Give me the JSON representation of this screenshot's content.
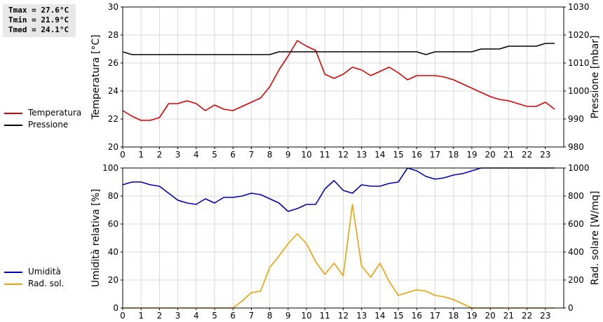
{
  "stats": {
    "tmax": "Tmax = 27.6°C",
    "tmin": "Tmin = 21.9°C",
    "tmed": "Tmed = 24.1°C"
  },
  "colors": {
    "temperature": "#dd0000",
    "pressure": "#000000",
    "humidity": "#0000bb",
    "radiation": "#f0a000"
  },
  "chart_data": [
    {
      "type": "line",
      "ylabel": "Temperatura [°C]",
      "y2label": "Pressione [mbar]",
      "ylim": [
        20,
        30
      ],
      "y2lim": [
        980,
        1030
      ],
      "yticks": [
        20,
        22,
        24,
        26,
        28,
        30
      ],
      "y2ticks": [
        980,
        990,
        1000,
        1010,
        1020,
        1030
      ],
      "xlim": [
        0,
        24
      ],
      "xticks": [
        "0",
        "1",
        "2",
        "3",
        "4",
        "5",
        "6",
        "7",
        "8",
        "9",
        "10",
        "11",
        "12",
        "13",
        "14",
        "15",
        "16",
        "17",
        "18",
        "19",
        "20",
        "21",
        "22",
        "23"
      ],
      "grid": true,
      "legend": [
        "Temperatura",
        "Pressione"
      ],
      "series": [
        {
          "name": "Temperatura",
          "axis": "left",
          "x": [
            0,
            0.5,
            1,
            1.5,
            2,
            2.5,
            3,
            3.5,
            4,
            4.5,
            5,
            5.5,
            6,
            6.5,
            7,
            7.5,
            8,
            8.5,
            9,
            9.5,
            10,
            10.5,
            11,
            11.5,
            12,
            12.5,
            13,
            13.5,
            14,
            14.5,
            15,
            15.5,
            16,
            16.5,
            17,
            17.5,
            18,
            18.5,
            19,
            19.5,
            20,
            20.5,
            21,
            21.5,
            22,
            22.5,
            23,
            23.5
          ],
          "values": [
            22.6,
            22.2,
            21.9,
            21.9,
            22.1,
            23.1,
            23.1,
            23.3,
            23.1,
            22.6,
            23.0,
            22.7,
            22.6,
            22.9,
            23.2,
            23.5,
            24.3,
            25.5,
            26.5,
            27.6,
            27.2,
            26.9,
            25.2,
            24.9,
            25.2,
            25.7,
            25.5,
            25.1,
            25.4,
            25.7,
            25.3,
            24.8,
            25.1,
            25.1,
            25.1,
            25.0,
            24.8,
            24.5,
            24.2,
            23.9,
            23.6,
            23.4,
            23.3,
            23.1,
            22.9,
            22.9,
            23.2,
            22.7
          ]
        },
        {
          "name": "Pressione",
          "axis": "right",
          "x": [
            0,
            0.5,
            1,
            1.5,
            2,
            2.5,
            3,
            3.5,
            4,
            4.5,
            5,
            5.5,
            6,
            6.5,
            7,
            7.5,
            8,
            8.5,
            9,
            9.5,
            10,
            10.5,
            11,
            11.5,
            12,
            12.5,
            13,
            13.5,
            14,
            14.5,
            15,
            15.5,
            16,
            16.5,
            17,
            17.5,
            18,
            18.5,
            19,
            19.5,
            20,
            20.5,
            21,
            21.5,
            22,
            22.5,
            23,
            23.5
          ],
          "values": [
            1014,
            1013,
            1013,
            1013,
            1013,
            1013,
            1013,
            1013,
            1013,
            1013,
            1013,
            1013,
            1013,
            1013,
            1013,
            1013,
            1013,
            1014,
            1014,
            1014,
            1014,
            1014,
            1014,
            1014,
            1014,
            1014,
            1014,
            1014,
            1014,
            1014,
            1014,
            1014,
            1014,
            1013,
            1014,
            1014,
            1014,
            1014,
            1014,
            1015,
            1015,
            1015,
            1016,
            1016,
            1016,
            1016,
            1017,
            1017
          ]
        }
      ]
    },
    {
      "type": "line",
      "ylabel": "Umidità relativa [%]",
      "y2label": "Rad. solare [W/mq]",
      "ylim": [
        0,
        100
      ],
      "y2lim": [
        0,
        1000
      ],
      "yticks": [
        0,
        20,
        40,
        60,
        80,
        100
      ],
      "y2ticks": [
        0,
        200,
        400,
        600,
        800,
        1000
      ],
      "xlim": [
        0,
        24
      ],
      "xticks": [
        "0",
        "1",
        "2",
        "3",
        "4",
        "5",
        "6",
        "7",
        "8",
        "9",
        "10",
        "11",
        "12",
        "13",
        "14",
        "15",
        "16",
        "17",
        "18",
        "19",
        "20",
        "21",
        "22",
        "23"
      ],
      "grid": true,
      "legend": [
        "Umidità",
        "Rad. sol."
      ],
      "series": [
        {
          "name": "Umidità",
          "axis": "left",
          "x": [
            0,
            0.5,
            1,
            1.5,
            2,
            2.5,
            3,
            3.5,
            4,
            4.5,
            5,
            5.5,
            6,
            6.5,
            7,
            7.5,
            8,
            8.5,
            9,
            9.5,
            10,
            10.5,
            11,
            11.5,
            12,
            12.5,
            13,
            13.5,
            14,
            14.5,
            15,
            15.5,
            16,
            16.5,
            17,
            17.5,
            18,
            18.5,
            19,
            19.5,
            20,
            20.5,
            21,
            21.5,
            22,
            22.5,
            23,
            23.5
          ],
          "values": [
            88,
            90,
            90,
            88,
            87,
            82,
            77,
            75,
            74,
            78,
            75,
            79,
            79,
            80,
            82,
            81,
            78,
            75,
            69,
            71,
            74,
            74,
            85,
            91,
            84,
            82,
            88,
            87,
            87,
            89,
            90,
            100,
            98,
            94,
            92,
            93,
            95,
            96,
            98,
            100,
            100,
            100,
            100,
            100,
            100,
            100,
            100,
            100
          ]
        },
        {
          "name": "Rad. sol.",
          "axis": "right",
          "x": [
            0,
            0.5,
            1,
            1.5,
            2,
            2.5,
            3,
            3.5,
            4,
            4.5,
            5,
            5.5,
            6,
            6.5,
            7,
            7.5,
            8,
            8.5,
            9,
            9.5,
            10,
            10.5,
            11,
            11.5,
            12,
            12.5,
            13,
            13.5,
            14,
            14.5,
            15,
            15.5,
            16,
            16.5,
            17,
            17.5,
            18,
            18.5,
            19,
            19.5,
            20,
            20.5,
            21,
            21.5,
            22,
            22.5,
            23,
            23.5
          ],
          "values": [
            0,
            0,
            0,
            0,
            0,
            0,
            0,
            0,
            0,
            0,
            0,
            0,
            0,
            50,
            110,
            120,
            290,
            370,
            460,
            530,
            460,
            330,
            240,
            320,
            230,
            740,
            300,
            220,
            320,
            190,
            90,
            110,
            130,
            120,
            90,
            80,
            60,
            30,
            0,
            0,
            0,
            0,
            0,
            0,
            0,
            0,
            0,
            0
          ]
        }
      ]
    }
  ]
}
